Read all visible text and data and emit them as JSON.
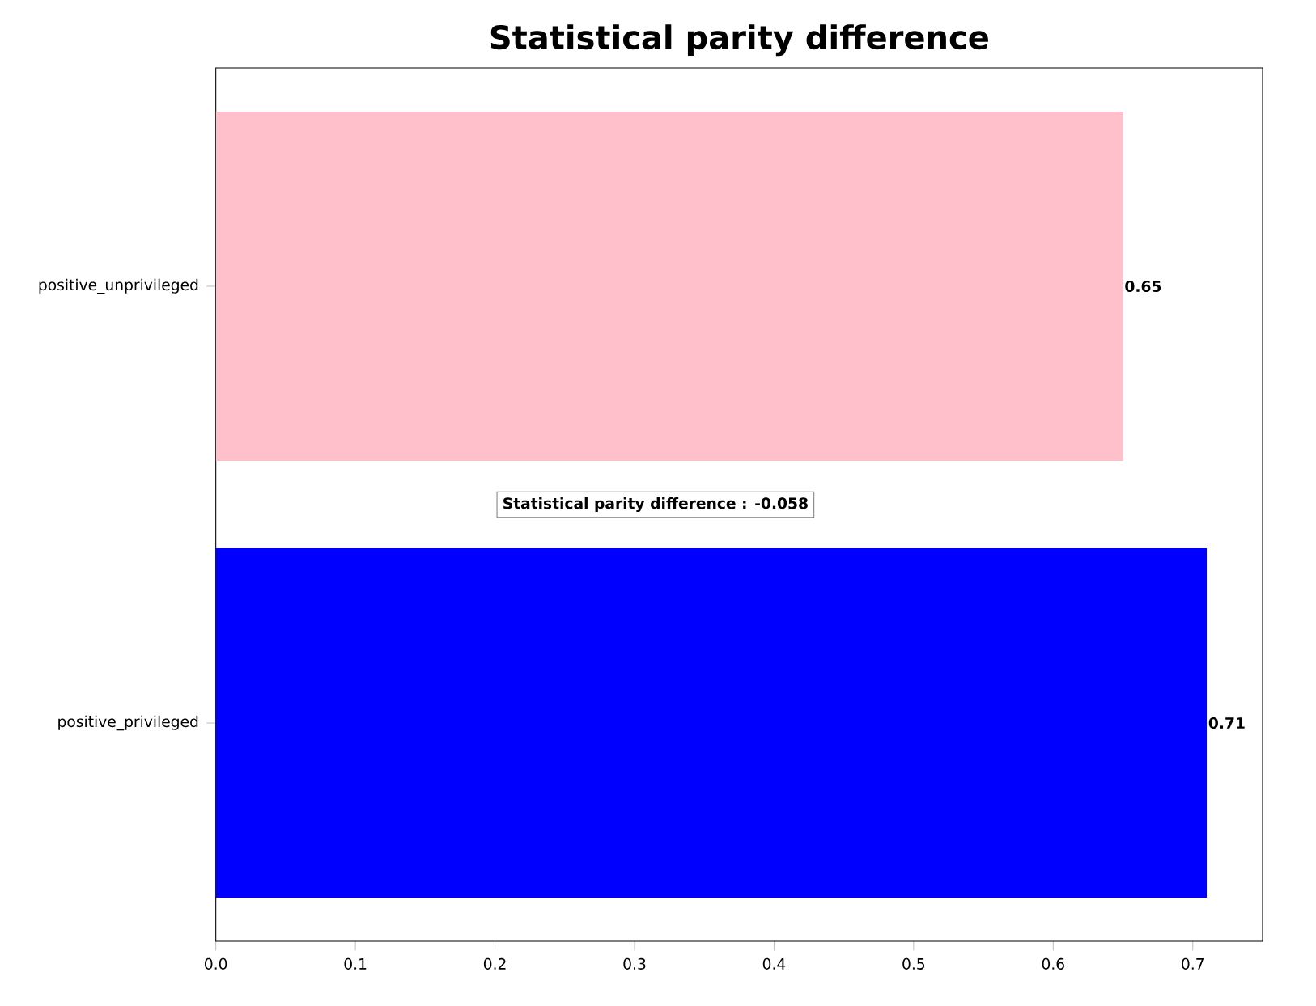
{
  "chart_data": {
    "type": "bar",
    "orientation": "horizontal",
    "title": "Statistical parity difference",
    "categories": [
      "positive_unprivileged",
      "positive_privileged"
    ],
    "values": [
      0.65,
      0.71
    ],
    "colors": [
      "#ffc0cb",
      "#0000ff"
    ],
    "data_labels": true,
    "xlim": [
      0,
      0.75
    ],
    "xticks": [
      {
        "value": 0,
        "label": "0.0"
      },
      0.1,
      0.2,
      0.3,
      0.4,
      0.5,
      0.6,
      0.7
    ],
    "annotations": [
      "Statistical parity difference : -0.058"
    ],
    "grid": false
  }
}
